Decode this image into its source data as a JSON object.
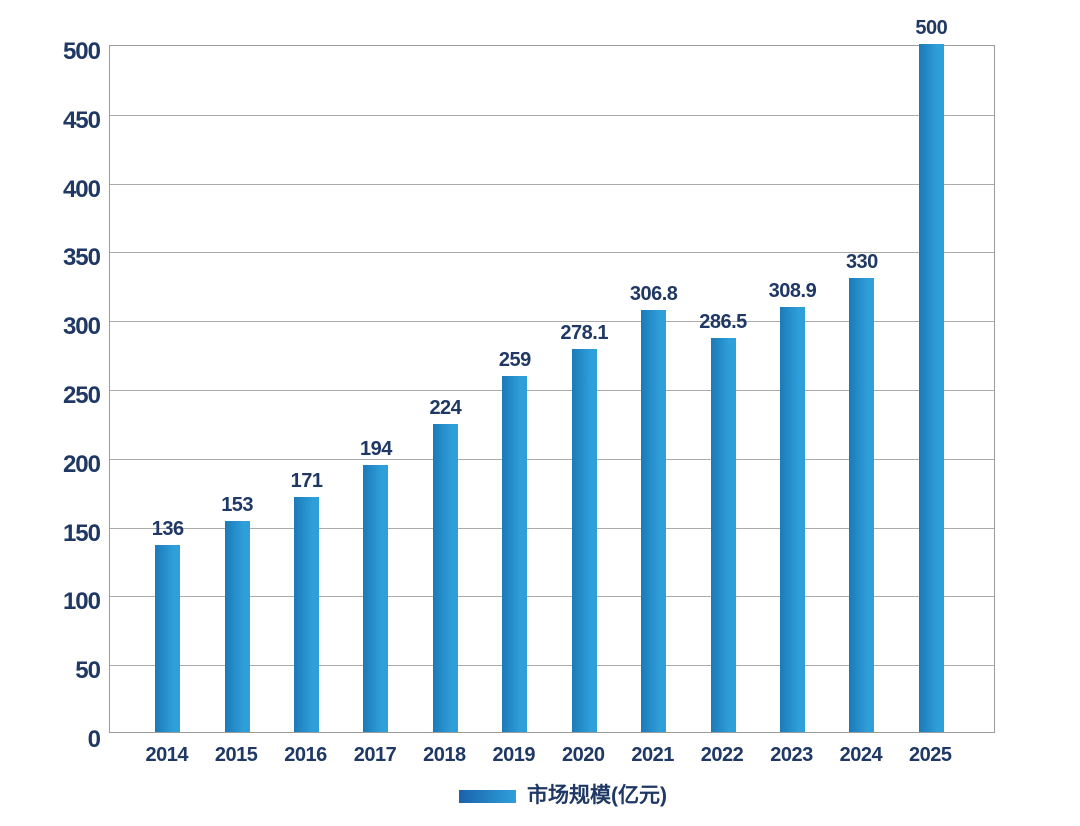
{
  "page": {
    "background": "#ffffff"
  },
  "chart_data": {
    "type": "bar",
    "title": "",
    "categories": [
      "2014",
      "2015",
      "2016",
      "2017",
      "2018",
      "2019",
      "2020",
      "2021",
      "2022",
      "2023",
      "2024",
      "2025"
    ],
    "values": [
      136,
      153,
      171,
      194,
      224,
      259,
      278.1,
      306.8,
      286.5,
      308.9,
      330,
      500
    ],
    "value_labels": [
      "136",
      "153",
      "171",
      "194",
      "224",
      "259",
      "278.1",
      "306.8",
      "286.5",
      "308.9",
      "330",
      "500"
    ],
    "xlabel": "",
    "ylabel": "",
    "ylim": [
      0,
      500
    ],
    "yticks": [
      0,
      50,
      100,
      150,
      200,
      250,
      300,
      350,
      400,
      450,
      500
    ],
    "grid": "horizontal-only",
    "legend_position": "bottom-center",
    "legend_label": "市场规模(亿元)",
    "colors": {
      "bar_gradient_start": "#1b7ab8",
      "bar_gradient_end": "#2f9fda",
      "legend_swatch_start": "#1a62ab",
      "legend_swatch_end": "#2f9fda",
      "text": "#1f3864",
      "grid_line": "#ababab",
      "plot_border": "#9c9c9c",
      "background": "#ffffff"
    }
  }
}
